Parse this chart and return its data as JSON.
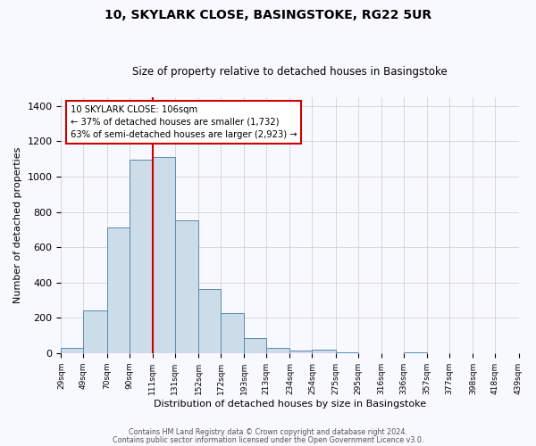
{
  "title": "10, SKYLARK CLOSE, BASINGSTOKE, RG22 5UR",
  "subtitle": "Size of property relative to detached houses in Basingstoke",
  "xlabel": "Distribution of detached houses by size in Basingstoke",
  "ylabel": "Number of detached properties",
  "bar_color": "#ccdce8",
  "bar_edge_color": "#5a8ab0",
  "background_color": "#f8f8ff",
  "grid_color": "#cccccc",
  "annotation_box_color": "#ffffff",
  "annotation_box_edge": "#cc0000",
  "vertical_line_color": "#cc0000",
  "vertical_line_x": 111,
  "categories": [
    "29sqm",
    "49sqm",
    "70sqm",
    "90sqm",
    "111sqm",
    "131sqm",
    "152sqm",
    "172sqm",
    "193sqm",
    "213sqm",
    "234sqm",
    "254sqm",
    "275sqm",
    "295sqm",
    "316sqm",
    "336sqm",
    "357sqm",
    "377sqm",
    "398sqm",
    "418sqm",
    "439sqm"
  ],
  "bin_edges": [
    29,
    49,
    70,
    90,
    111,
    131,
    152,
    172,
    193,
    213,
    234,
    254,
    275,
    295,
    316,
    336,
    357,
    377,
    398,
    418,
    439
  ],
  "values": [
    30,
    240,
    710,
    1095,
    1110,
    750,
    365,
    225,
    85,
    30,
    15,
    20,
    5,
    0,
    0,
    5,
    0,
    0,
    0,
    0
  ],
  "ylim": [
    0,
    1450
  ],
  "yticks": [
    0,
    200,
    400,
    600,
    800,
    1000,
    1200,
    1400
  ],
  "annotation_title": "10 SKYLARK CLOSE: 106sqm",
  "annotation_line1": "← 37% of detached houses are smaller (1,732)",
  "annotation_line2": "63% of semi-detached houses are larger (2,923) →",
  "footer1": "Contains HM Land Registry data © Crown copyright and database right 2024.",
  "footer2": "Contains public sector information licensed under the Open Government Licence v3.0."
}
